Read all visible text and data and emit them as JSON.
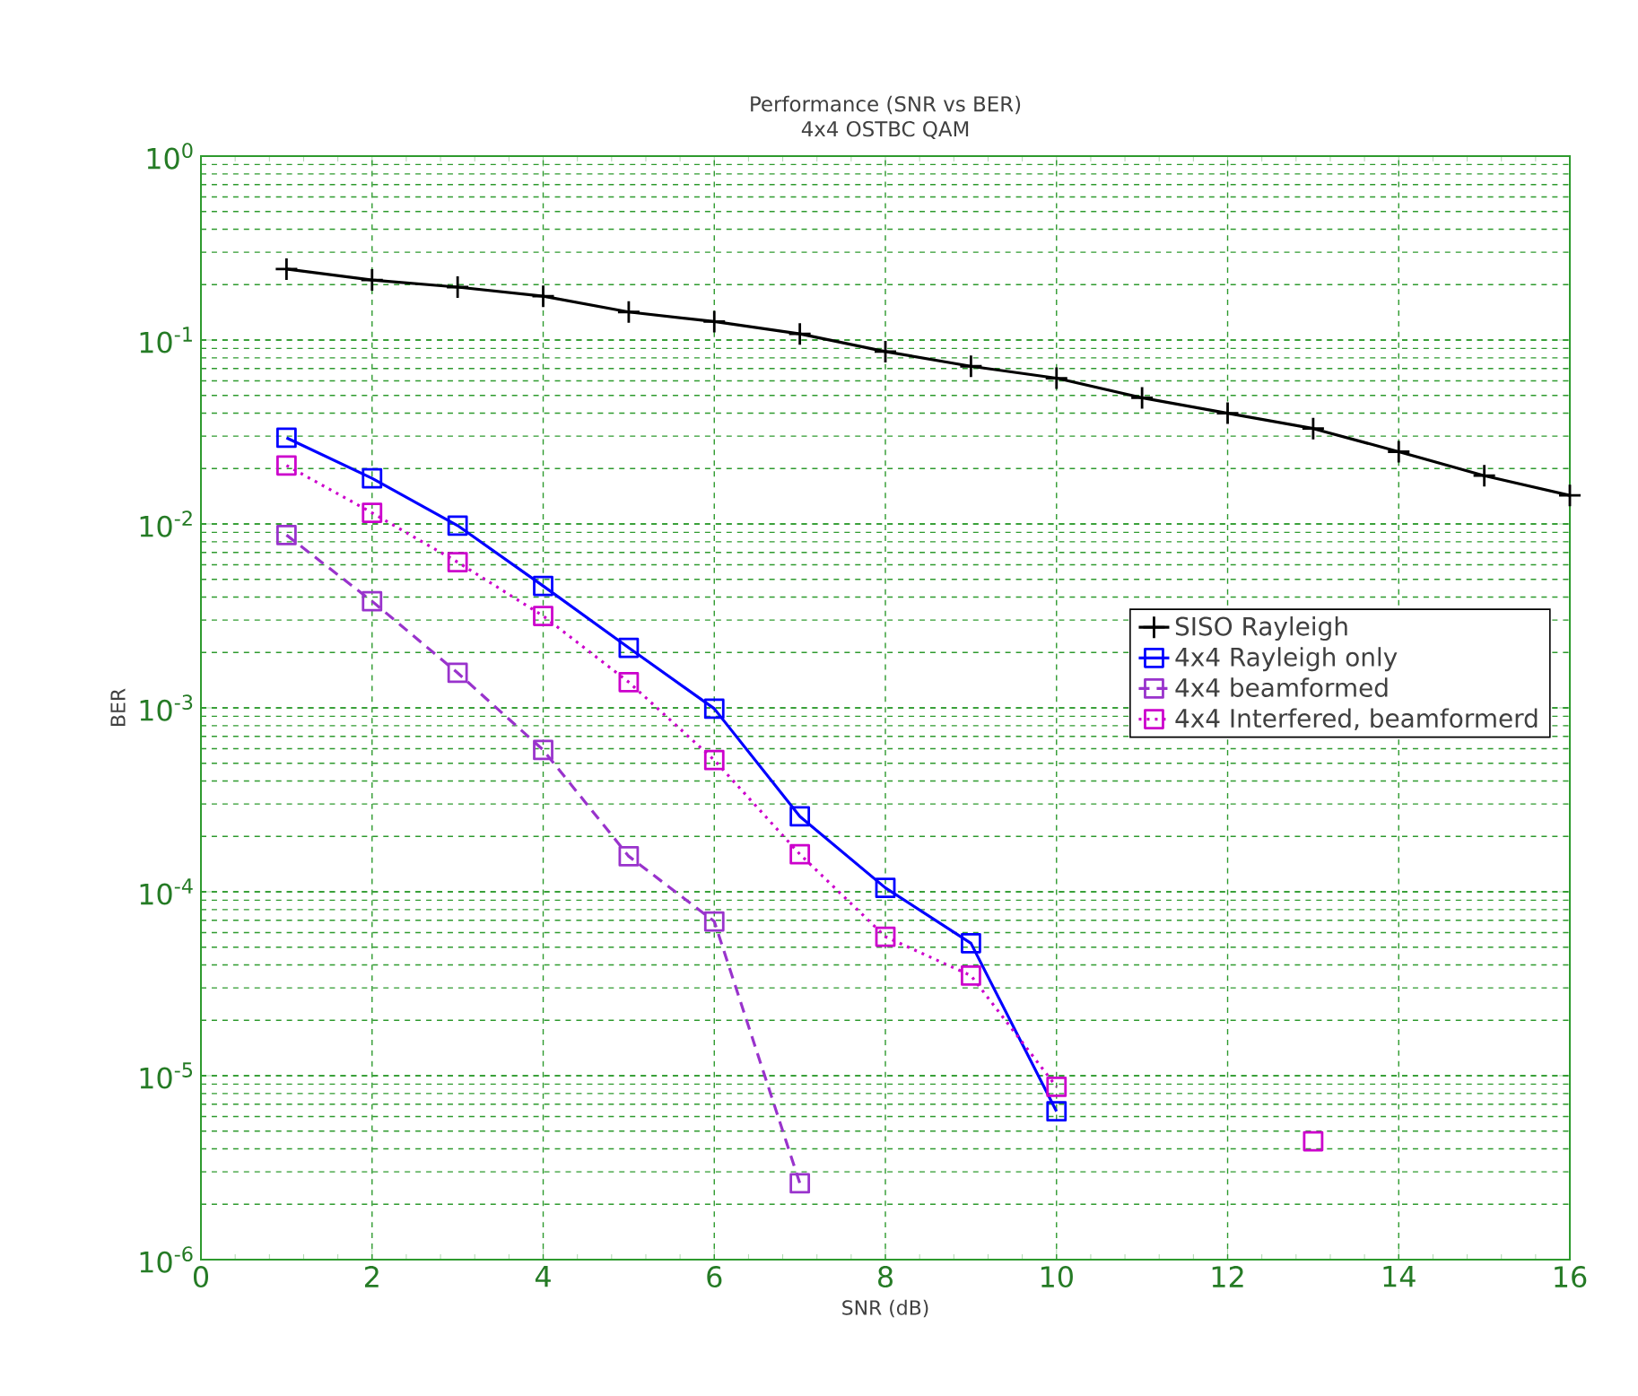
{
  "chart_data": {
    "type": "line",
    "title": "Performance (SNR vs BER)",
    "subtitle": "4x4 OSTBC QAM",
    "xlabel": "SNR (dB)",
    "ylabel": "BER",
    "x": [
      1,
      2,
      3,
      4,
      5,
      6,
      7,
      8,
      9,
      10,
      11,
      12,
      13,
      14,
      15,
      16
    ],
    "series": [
      {
        "name": "SISO Rayleigh",
        "color": "#000000",
        "marker": "cross",
        "line_style": "solid",
        "values": [
          0.243,
          0.212,
          0.194,
          0.173,
          0.142,
          0.126,
          0.108,
          0.0865,
          0.072,
          0.062,
          0.0485,
          0.04,
          0.033,
          0.0247,
          0.0183,
          0.0143
        ]
      },
      {
        "name": "4x4 Rayleigh only",
        "color": "#0000ff",
        "marker": "square",
        "line_style": "solid",
        "values": [
          0.0294,
          0.0177,
          0.0098,
          0.0046,
          0.00212,
          0.00099,
          0.000257,
          0.000105,
          5.25e-05,
          6.4e-06,
          null,
          null,
          null,
          null,
          null,
          null
        ]
      },
      {
        "name": "4x4 beamformed",
        "color": "#9933cc",
        "marker": "square",
        "line_style": "dashed",
        "values": [
          0.0087,
          0.0038,
          0.00155,
          0.00059,
          0.000156,
          6.9e-05,
          2.6e-06,
          null,
          null,
          null,
          null,
          null,
          null,
          null,
          null,
          null
        ]
      },
      {
        "name": "4x4 Interfered, beamformerd",
        "color": "#cc00cc",
        "marker": "square",
        "line_style": "dotted",
        "values": [
          0.0208,
          0.0115,
          0.0062,
          0.00316,
          0.00138,
          0.00052,
          0.00016,
          5.7e-05,
          3.5e-05,
          8.7e-06,
          null,
          null,
          4.4e-06,
          null,
          null,
          null
        ]
      }
    ],
    "log": "y",
    "grid": true,
    "legend": "right",
    "xlim": [
      0,
      16
    ],
    "xticks": [
      0,
      2,
      4,
      6,
      8,
      10,
      12,
      14,
      16
    ],
    "ylim": [
      1e-06,
      1
    ],
    "yticks": [
      {
        "value": 1e-06,
        "label": "10$^{-6}$"
      },
      {
        "value": 1e-05,
        "label": "10$^{-5}$"
      },
      {
        "value": 0.0001,
        "label": "10$^{-4}$"
      },
      {
        "value": 0.001,
        "label": "10$^{-3}$"
      },
      {
        "value": 0.01,
        "label": "10$^{-2}$"
      },
      {
        "value": 0.1,
        "label": "10$^{-1}$"
      },
      {
        "value": 1,
        "label": "10$^{0}$"
      }
    ]
  }
}
